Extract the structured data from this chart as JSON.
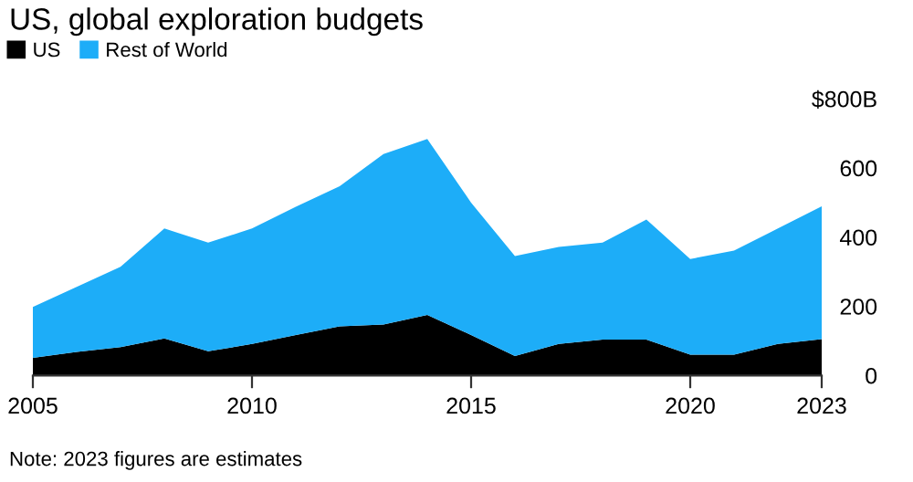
{
  "chart_data": {
    "type": "area",
    "stacked": true,
    "title": "US, global exploration budgets",
    "x": [
      2005,
      2006,
      2007,
      2008,
      2009,
      2010,
      2011,
      2012,
      2013,
      2014,
      2015,
      2016,
      2017,
      2018,
      2019,
      2020,
      2021,
      2022,
      2023
    ],
    "series": [
      {
        "name": "US",
        "color": "#000000",
        "values": [
          51,
          68,
          82,
          107,
          70,
          91,
          117,
          142,
          147,
          175,
          117,
          56,
          91,
          104,
          104,
          60,
          60,
          91,
          105
        ]
      },
      {
        "name": "Rest of World",
        "color": "#1dadf8",
        "values": [
          147,
          188,
          232,
          318,
          314,
          334,
          371,
          405,
          493,
          509,
          383,
          289,
          281,
          280,
          347,
          277,
          301,
          334,
          384
        ]
      }
    ],
    "xlim": [
      2005,
      2023
    ],
    "xticks": [
      2005,
      2010,
      2015,
      2020,
      2023
    ],
    "ylim": [
      0,
      800
    ],
    "yticks": [
      0,
      200,
      400,
      600,
      {
        "value": 800,
        "label": "$800B"
      }
    ],
    "legend": "top left",
    "grid": false,
    "annotations": [
      "Note: 2023 figures are estimates"
    ]
  }
}
